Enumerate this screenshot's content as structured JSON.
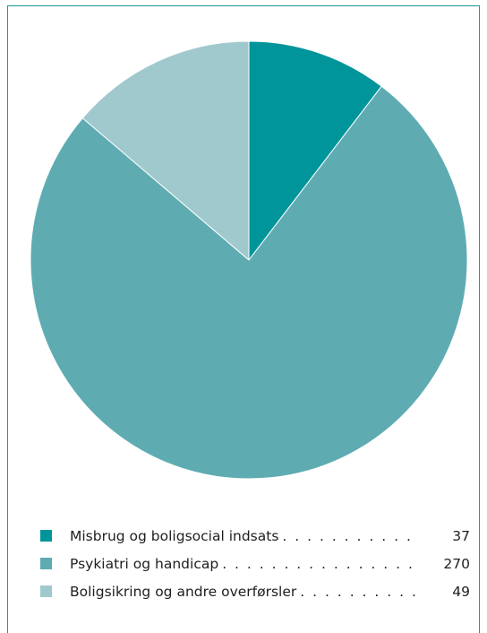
{
  "chart_data": {
    "type": "pie",
    "categories": [
      "Misbrug og boligsocial indsats",
      "Psykiatri og handicap",
      "Boligsikring og andre overførsler"
    ],
    "values": [
      37,
      270,
      49
    ],
    "colors": [
      "#00959a",
      "#5eacb2",
      "#a0c9ce"
    ],
    "legend_position": "bottom",
    "title": ""
  },
  "legend": [
    {
      "label": "Misbrug og boligsocial indsats",
      "value": "37"
    },
    {
      "label": "Psykiatri og handicap",
      "value": "270"
    },
    {
      "label": "Boligsikring og andre overførsler",
      "value": "49"
    }
  ]
}
